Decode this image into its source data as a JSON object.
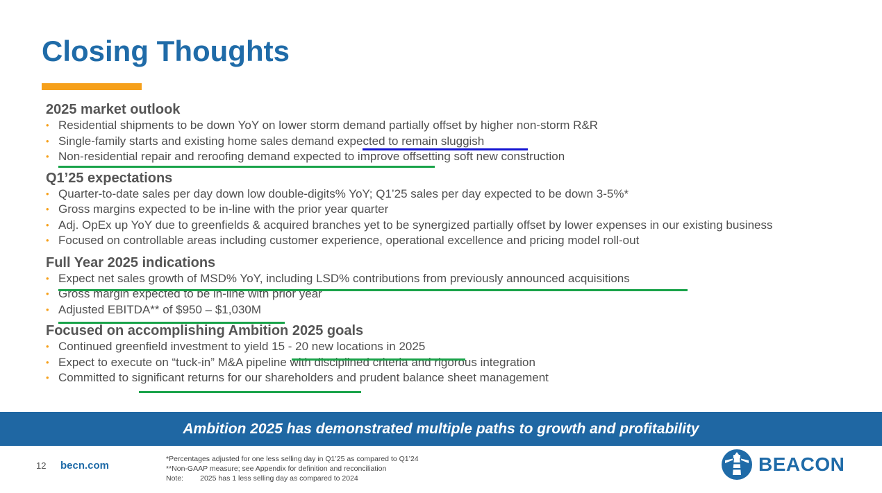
{
  "slide": {
    "title": "Closing Thoughts",
    "accent_color": "#f6a01a",
    "brand_color": "#1f6ba8",
    "underline_colors": {
      "green": "#1aa34a",
      "blue": "#1414d2"
    }
  },
  "sections": [
    {
      "heading": "2025 market outlook",
      "bullets": [
        "Residential shipments to be down YoY on lower storm demand partially offset by higher non-storm R&R",
        "Single-family starts and existing home sales demand expected to remain sluggish",
        "Non-residential repair and reroofing demand expected to improve offsetting soft new construction"
      ]
    },
    {
      "heading": "Q1’25 expectations",
      "bullets": [
        "Quarter-to-date sales per day down low double-digits% YoY; Q1’25 sales per day expected to be down 3-5%*",
        "Gross margins expected to be in-line with the prior year quarter",
        "Adj. OpEx up YoY due to greenfields & acquired branches yet to be synergized partially offset by lower expenses in our existing business",
        "Focused on controllable areas including customer experience, operational excellence and pricing model roll-out"
      ]
    },
    {
      "heading": "Full Year 2025 indications",
      "bullets": [
        "Expect net sales growth of MSD% YoY, including LSD% contributions from previously announced acquisitions",
        "Gross margin expected to be in-line with prior year",
        "Adjusted EBITDA** of $950 – $1,030M"
      ]
    },
    {
      "heading": "Focused on accomplishing Ambition 2025 goals",
      "bullets": [
        "Continued greenfield investment to yield 15 - 20 new locations in 2025",
        "Expect to execute on “tuck-in” M&A pipeline with disciplined criteria and rigorous integration",
        "Committed to significant returns for our shareholders and prudent balance sheet management"
      ]
    }
  ],
  "banner": {
    "text": "Ambition 2025 has demonstrated multiple paths to growth and profitability"
  },
  "footer": {
    "page_number": "12",
    "website": "becn.com",
    "footnotes": [
      "*Percentages adjusted for one less selling day in Q1’25 as compared to Q1’24",
      "**Non-GAAP measure; see Appendix for definition and reconciliation"
    ],
    "note_label": "Note:",
    "note_text": "2025 has 1 less selling day as compared to 2024",
    "logo_icon": "beacon-lighthouse-icon",
    "logo_text": "BEACON"
  }
}
